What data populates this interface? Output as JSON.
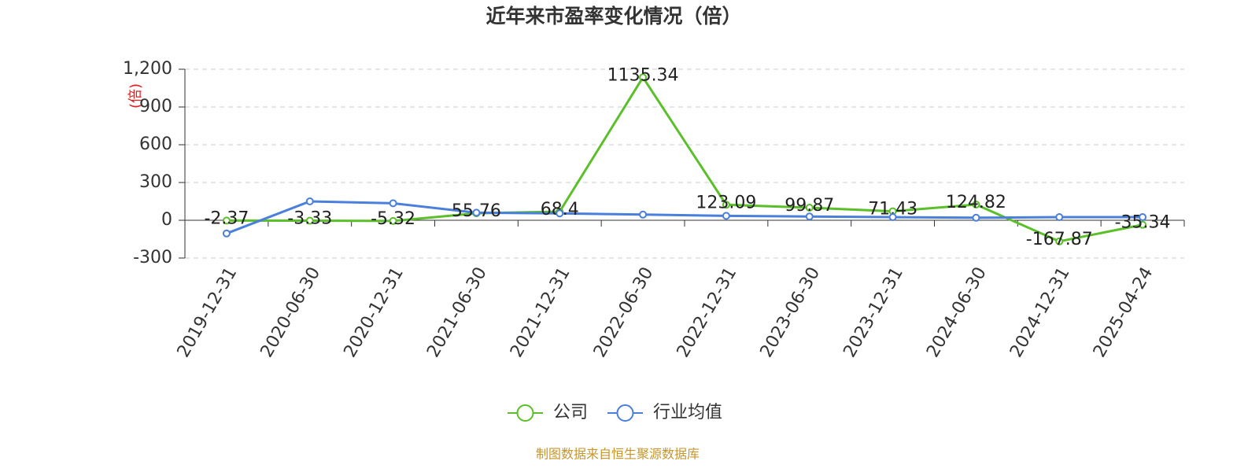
{
  "chart_data": {
    "type": "line",
    "title": "近年来市盈率变化情况（倍）",
    "y_label": "(倍)",
    "source": "制图数据来自恒生聚源数据库",
    "categories": [
      "2019-12-31",
      "2020-06-30",
      "2020-12-31",
      "2021-06-30",
      "2021-12-31",
      "2022-06-30",
      "2022-12-31",
      "2023-06-30",
      "2023-12-31",
      "2024-06-30",
      "2024-12-31",
      "2025-04-24"
    ],
    "series": [
      {
        "name": "公司",
        "color": "#5bbf2a",
        "values": [
          -2.37,
          -3.33,
          -5.32,
          55.76,
          68.4,
          1135.34,
          123.09,
          99.87,
          71.43,
          124.82,
          -167.87,
          -35.34
        ],
        "labels": true
      },
      {
        "name": "行业均值",
        "color": "#4a7fdc",
        "values": [
          -105,
          150,
          135,
          60,
          55,
          45,
          35,
          30,
          25,
          20,
          25,
          25
        ],
        "labels": false
      }
    ],
    "ylim": [
      -300,
      1200
    ],
    "yticks": [
      -300,
      0,
      300,
      600,
      900,
      {
        "value": 1200,
        "label": "1,200"
      }
    ],
    "grid": true
  }
}
